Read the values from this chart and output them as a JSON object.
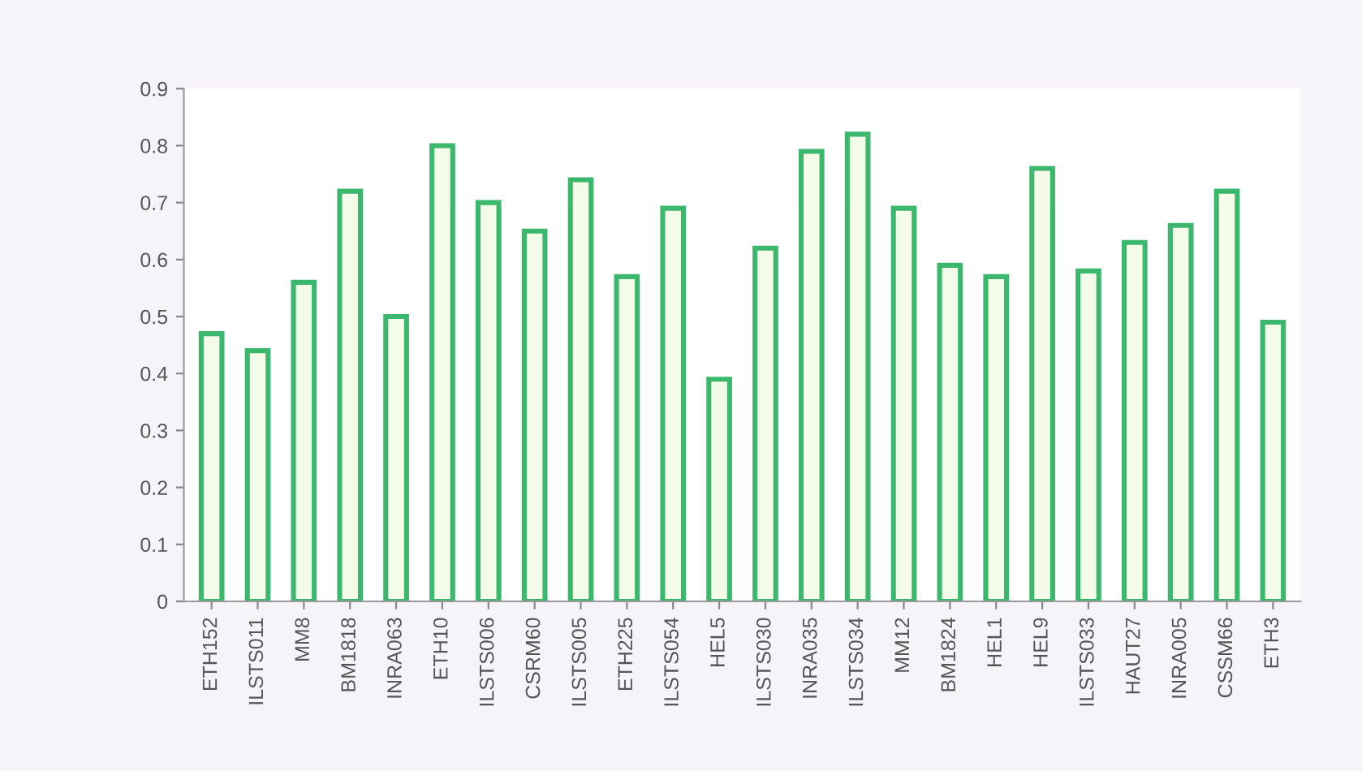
{
  "chart_data": {
    "type": "bar",
    "categories": [
      "ETH152",
      "ILSTS011",
      "MM8",
      "BM1818",
      "INRA063",
      "ETH10",
      "ILSTS006",
      "CSRM60",
      "ILSTS005",
      "ETH225",
      "ILSTS054",
      "HEL5",
      "ILSTS030",
      "INRA035",
      "ILSTS034",
      "MM12",
      "BM1824",
      "HEL1",
      "HEL9",
      "ILSTS033",
      "HAUT27",
      "INRA005",
      "CSSM66",
      "ETH3"
    ],
    "values": [
      0.47,
      0.44,
      0.56,
      0.72,
      0.5,
      0.8,
      0.7,
      0.65,
      0.74,
      0.57,
      0.69,
      0.39,
      0.62,
      0.79,
      0.82,
      0.69,
      0.59,
      0.57,
      0.76,
      0.58,
      0.63,
      0.66,
      0.72,
      0.49
    ],
    "color": "#3cb86e",
    "ylim": [
      0,
      0.9
    ],
    "yticks": [
      0,
      0.1,
      0.2,
      0.3,
      0.4,
      0.5,
      0.6,
      0.7,
      0.8,
      0.9
    ],
    "grid": false
  }
}
